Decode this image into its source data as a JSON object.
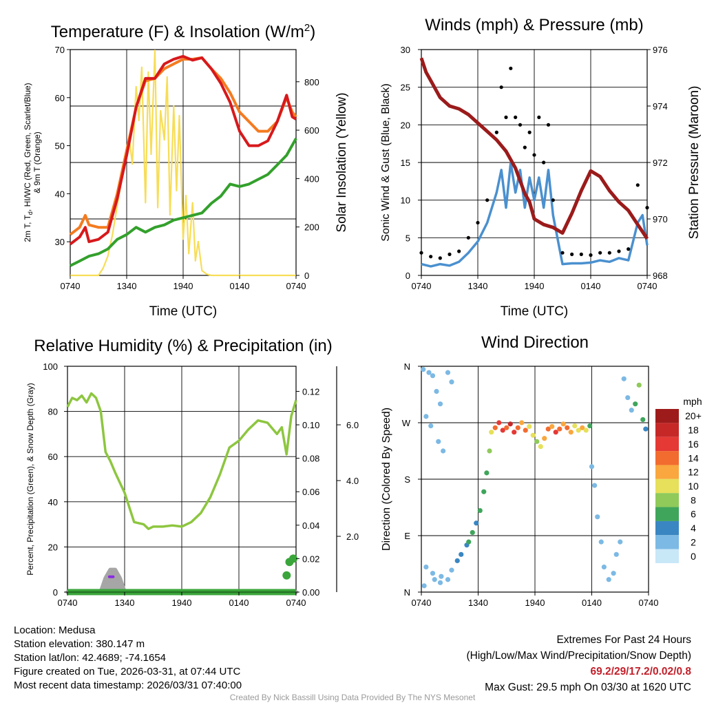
{
  "panels": {
    "temp": {
      "title": "Temperature (F) & Insolation (W/m",
      "title_sup": "2",
      "title_close": ")",
      "ylabel_line1": "2m T, T",
      "ylabel_sub": "d",
      "ylabel_rest": ", HI/WC (Red, Green, Scarlet/Blue)",
      "ylabel_line2": "& 9m T (Orange)",
      "y2label": "Solar Insolation (Yellow)",
      "xlabel": "Time (UTC)"
    },
    "wind": {
      "title": "Winds (mph) & Pressure (mb)",
      "ylabel": "Sonic Wind & Gust (Blue, Black)",
      "y2label": "Station Pressure (Maroon)",
      "xlabel": "Time (UTC)"
    },
    "rh": {
      "title": "Relative Humidity (%) & Precipitation (in)",
      "ylabel": "Percent, Precipitation (Green), & Snow Depth (Gray)"
    },
    "dir": {
      "title": "Wind Direction",
      "ylabel": "Direction (Colored By Speed)",
      "legend_title": "mph"
    }
  },
  "info": {
    "location": "Location: Medusa",
    "elevation": "Station elevation: 380.147 m",
    "latlon": "Station lat/lon: 42.4689; -74.1654",
    "created": "Figure created on Tue, 2026-03-31, at 07:44 UTC",
    "recent": "Most recent data timestamp: 2026/03/31 07:40:00"
  },
  "extremes": {
    "title": "Extremes For Past 24 Hours",
    "subtitle": "(High/Low/Max Wind/Precipitation/Snow Depth)",
    "values": "69.2/29/17.2/0.02/0.8",
    "max_gust": "Max Gust: 29.5 mph On 03/30 at 1620 UTC"
  },
  "credit": "Created By Nick Bassill Using Data Provided By The NYS Mesonet",
  "colors": {
    "temp": "#d7191c",
    "dewpoint": "#33a02c",
    "nine_m": "#f47b20",
    "insolation": "#f7dd57",
    "wind": "#4a90cf",
    "gust": "#000000",
    "pressure": "#9b1b1b",
    "rh": "#8dc63f",
    "precip": "#3aa53a",
    "snow": "#a6a6a6",
    "snow_marker": "#8a2be2"
  },
  "chart_data": [
    {
      "id": "temp",
      "type": "line",
      "title": "Temperature (F) & Insolation (W/m2)",
      "xlabel": "Time (UTC)",
      "x_ticks": [
        "0740",
        "1340",
        "1940",
        "0140",
        "0740"
      ],
      "x_range_hours": [
        0,
        24
      ],
      "ylim": [
        23,
        70
      ],
      "yticks": [
        30,
        40,
        50,
        60,
        70
      ],
      "y2lim": [
        0,
        933
      ],
      "y2ticks": [
        0,
        200,
        400,
        600,
        800
      ],
      "series": [
        {
          "name": "9m T (Orange)",
          "axis": "left",
          "color_key": "nine_m",
          "x": [
            0,
            1,
            1.6,
            2,
            3,
            4,
            5,
            6,
            7,
            8,
            9,
            10,
            11,
            12,
            13,
            14,
            15,
            16,
            17,
            18,
            19,
            20,
            21,
            22,
            23,
            23.6,
            24
          ],
          "y": [
            31.5,
            33,
            35.5,
            33.5,
            33,
            33,
            40,
            49,
            58,
            63.5,
            64,
            66,
            67,
            68,
            68,
            68.3,
            66,
            64,
            61,
            57,
            55,
            53,
            53,
            55,
            60,
            57,
            56
          ]
        },
        {
          "name": "2m T (Red)",
          "axis": "left",
          "color_key": "temp",
          "x": [
            0,
            1,
            1.6,
            2,
            3,
            4,
            5,
            6,
            7,
            8,
            9,
            10,
            11,
            12,
            13,
            14,
            15,
            16,
            17,
            18,
            19,
            20,
            21,
            22,
            23,
            23.6,
            24
          ],
          "y": [
            29.5,
            31,
            33,
            30,
            30.5,
            32,
            39,
            48,
            58,
            64,
            64,
            67,
            68,
            68.6,
            67.8,
            68.3,
            66,
            63,
            59,
            53,
            50,
            50,
            51,
            55,
            60.5,
            56,
            55.5
          ]
        },
        {
          "name": "Dewpoint (Green)",
          "axis": "left",
          "color_key": "dewpoint",
          "x": [
            0,
            1,
            2,
            3,
            4,
            5,
            6,
            7,
            8,
            9,
            10,
            11,
            12,
            13,
            14,
            15,
            16,
            17,
            18,
            19,
            20,
            21,
            22,
            23,
            24
          ],
          "y": [
            25,
            26,
            27,
            27.5,
            28.5,
            30.5,
            31.5,
            33,
            32,
            33,
            33.5,
            34.5,
            35,
            35.5,
            36,
            38,
            39.5,
            42,
            41.5,
            42,
            43,
            44,
            46,
            48,
            51.5
          ]
        },
        {
          "name": "Solar Insolation (Yellow)",
          "axis": "right",
          "color_key": "insolation",
          "x": [
            0,
            3,
            3.5,
            4,
            4.5,
            5,
            5.5,
            6,
            6.3,
            6.6,
            7,
            7.3,
            7.6,
            8,
            8.3,
            8.6,
            9,
            9.3,
            9.6,
            10,
            10.3,
            10.6,
            11,
            11.3,
            11.6,
            12,
            12.3,
            12.6,
            13,
            13.3,
            13.6,
            14,
            14.5,
            15,
            24
          ],
          "y": [
            0,
            0,
            30,
            80,
            170,
            290,
            400,
            520,
            560,
            460,
            780,
            640,
            860,
            300,
            840,
            500,
            930,
            280,
            680,
            560,
            820,
            250,
            700,
            350,
            660,
            150,
            330,
            90,
            300,
            60,
            140,
            20,
            5,
            0,
            0
          ]
        }
      ]
    },
    {
      "id": "wind",
      "type": "line",
      "title": "Winds (mph) & Pressure (mb)",
      "xlabel": "Time (UTC)",
      "x_ticks": [
        "0740",
        "1340",
        "1940",
        "0140",
        "0740"
      ],
      "x_range_hours": [
        0,
        24
      ],
      "ylim": [
        0,
        30
      ],
      "yticks": [
        0,
        5,
        10,
        15,
        20,
        25,
        30
      ],
      "y2lim": [
        968,
        976
      ],
      "y2ticks": [
        968,
        970,
        972,
        974,
        976
      ],
      "series": [
        {
          "name": "Sonic Wind (Blue)",
          "axis": "left",
          "color_key": "wind",
          "x": [
            0,
            1,
            2,
            3,
            4,
            5,
            6,
            7,
            8,
            8.5,
            9,
            9.5,
            10,
            10.5,
            11,
            11.5,
            12,
            12.5,
            13,
            13.5,
            14,
            15,
            16,
            17,
            18,
            19,
            20,
            21,
            22,
            23,
            23.5,
            24
          ],
          "y": [
            1.5,
            1.2,
            1.5,
            1.3,
            1.8,
            3,
            4.5,
            7,
            11,
            14,
            9,
            15,
            11,
            14,
            9,
            13,
            10,
            13,
            9,
            14,
            8,
            1.5,
            1.6,
            1.6,
            1.7,
            2,
            1.8,
            2.3,
            2,
            7,
            8,
            4
          ]
        },
        {
          "name": "Gust (Black)",
          "axis": "left",
          "color_key": "gust",
          "render": "points",
          "x": [
            0,
            1,
            2,
            3,
            4,
            5,
            6,
            7,
            8,
            8.5,
            9,
            9.5,
            10,
            10.5,
            11,
            11.5,
            12,
            12.5,
            13,
            13.5,
            14,
            15,
            16,
            17,
            18,
            19,
            20,
            21,
            22,
            23,
            24
          ],
          "y": [
            3,
            2.5,
            2.3,
            2.8,
            3.2,
            5,
            7,
            10,
            19,
            25,
            21,
            27.5,
            21,
            20,
            17,
            19,
            16,
            21,
            15,
            20,
            10,
            3,
            2.8,
            2.8,
            2.7,
            3,
            3,
            3.2,
            3.5,
            12,
            9
          ]
        },
        {
          "name": "Station Pressure (Maroon)",
          "axis": "right",
          "color_key": "pressure",
          "x": [
            0,
            0.5,
            1,
            2,
            3,
            4,
            5,
            6,
            7,
            8,
            9,
            10,
            11,
            11.5,
            12,
            13,
            14,
            15,
            16,
            17,
            18,
            19,
            20,
            21,
            22,
            23,
            24
          ],
          "y": [
            975.7,
            975.2,
            974.9,
            974.3,
            974.0,
            973.9,
            973.7,
            973.4,
            973.1,
            972.8,
            972.4,
            971.8,
            970.9,
            970.6,
            970.0,
            969.8,
            969.7,
            969.5,
            970.2,
            971.0,
            971.7,
            971.5,
            971.0,
            970.6,
            970.3,
            969.8,
            969.3
          ]
        }
      ]
    },
    {
      "id": "rh",
      "type": "line",
      "title": "Relative Humidity (%) & Precipitation (in)",
      "x_ticks": [
        "0740",
        "1340",
        "1940",
        "0140",
        "0740"
      ],
      "x_range_hours": [
        0,
        24
      ],
      "ylim": [
        0,
        100
      ],
      "yticks": [
        0,
        20,
        40,
        60,
        80,
        100
      ],
      "y2lim": [
        0,
        0.135
      ],
      "y2ticks": [
        0.0,
        0.02,
        0.04,
        0.06,
        0.08,
        0.1,
        0.12
      ],
      "y2tick_labels": [
        "0.00",
        "0.02",
        "0.04",
        "0.06",
        "0.08",
        "0.10",
        "0.12"
      ],
      "y3lim": [
        0,
        8.1
      ],
      "y3ticks": [
        2.0,
        4.0,
        6.0
      ],
      "y3tick_labels": [
        "2.0",
        "4.0",
        "6.0"
      ],
      "series": [
        {
          "name": "Relative Humidity (Green)",
          "axis": "left",
          "color_key": "rh",
          "x": [
            0,
            0.5,
            1,
            1.5,
            2,
            2.5,
            3,
            3.5,
            4,
            4.5,
            5,
            6,
            7,
            8,
            8.5,
            9,
            10,
            11,
            12,
            13,
            14,
            15,
            16,
            17,
            18,
            19,
            20,
            21,
            22,
            22.5,
            23,
            23.5,
            24
          ],
          "y": [
            82,
            86,
            85,
            87,
            84,
            88,
            86,
            80,
            62,
            58,
            53,
            44,
            31,
            30,
            28,
            29,
            29,
            29.5,
            29,
            31,
            35,
            42,
            52,
            64,
            67,
            72,
            76,
            75,
            70,
            73,
            61,
            78,
            85
          ]
        },
        {
          "name": "Precipitation (Green)",
          "axis": "right",
          "color_key": "precip",
          "x": [
            0,
            23,
            23.3,
            23.6,
            24
          ],
          "y": [
            0.0,
            0.0,
            0.01,
            0.018,
            0.02
          ]
        },
        {
          "name": "Snow Depth (Gray)",
          "axis": "right3",
          "color_key": "snow",
          "x": [
            0,
            3.5,
            4,
            4.5,
            5,
            5.5,
            6,
            24
          ],
          "y": [
            0,
            0,
            0.5,
            0.8,
            0.8,
            0.5,
            0,
            0
          ]
        }
      ]
    },
    {
      "id": "dir",
      "type": "scatter",
      "title": "Wind Direction",
      "ylabel": "Direction (Colored By Speed)",
      "x_ticks": [
        "0740",
        "1340",
        "1940",
        "0140",
        "0740"
      ],
      "x_range_hours": [
        0,
        24
      ],
      "ylim": [
        0,
        360
      ],
      "yticks": [
        0,
        90,
        180,
        270,
        360
      ],
      "ytick_labels": [
        "N",
        "E",
        "S",
        "W",
        "N"
      ],
      "colorbar": {
        "title": "mph",
        "labels": [
          "20+",
          "18",
          "16",
          "14",
          "12",
          "10",
          "8",
          "6",
          "4",
          "2",
          "0"
        ],
        "colors": [
          "#9e1b1b",
          "#c62828",
          "#e53935",
          "#f26b2f",
          "#f9a73e",
          "#e6e05a",
          "#8fca5a",
          "#3fa55b",
          "#3a86c2",
          "#7cb9e4",
          "#c8e7f7"
        ]
      },
      "clusters": [
        {
          "x": [
            0.2,
            0.8,
            1.2,
            1.6,
            2.0,
            0.5,
            1.0,
            1.8,
            2.3,
            2.8,
            3.2,
            0.3,
            1.4,
            2.1
          ],
          "y": [
            355,
            350,
            345,
            320,
            300,
            280,
            265,
            240,
            225,
            350,
            335,
            10,
            20,
            25
          ],
          "speed": [
            1,
            1,
            2,
            1,
            1,
            2,
            1,
            1,
            2,
            1,
            1,
            1,
            2,
            1
          ]
        },
        {
          "x": [
            0.5,
            1.2,
            2.0,
            2.8,
            3.2,
            3.8,
            4.2,
            4.8,
            5.0,
            5.4,
            5.8,
            6.2,
            6.6,
            6.9,
            7.2
          ],
          "y": [
            40,
            30,
            15,
            20,
            35,
            50,
            60,
            75,
            80,
            95,
            110,
            130,
            160,
            190,
            225
          ],
          "speed": [
            2,
            1,
            1,
            2,
            2,
            3,
            4,
            4,
            5,
            5,
            4,
            5,
            5,
            6,
            7
          ]
        },
        {
          "x": [
            7.4,
            7.8,
            8.2,
            8.6,
            9.0,
            9.4,
            9.8,
            10.2,
            10.6,
            11.0,
            11.4,
            11.8,
            12.2,
            12.6,
            13.0,
            13.4,
            13.8,
            14.2,
            14.6,
            15.0,
            15.4,
            15.8,
            16.2,
            16.6,
            17.0,
            17.4,
            17.8
          ],
          "y": [
            255,
            262,
            270,
            258,
            262,
            268,
            255,
            262,
            270,
            258,
            264,
            250,
            240,
            232,
            245,
            260,
            264,
            255,
            260,
            268,
            262,
            255,
            265,
            258,
            262,
            258,
            265
          ],
          "speed": [
            9,
            13,
            16,
            15,
            13,
            18,
            16,
            14,
            12,
            13,
            10,
            9,
            8,
            9,
            11,
            13,
            12,
            15,
            13,
            11,
            14,
            12,
            10,
            9,
            11,
            9,
            6
          ]
        },
        {
          "x": [
            18.0,
            18.3,
            18.6,
            19.0,
            19.3,
            19.8,
            20.3,
            20.6,
            21.0,
            21.4,
            21.8,
            22.2,
            22.6,
            23.0,
            23.4,
            23.7
          ],
          "y": [
            200,
            170,
            120,
            80,
            40,
            20,
            30,
            60,
            80,
            340,
            310,
            290,
            300,
            330,
            275,
            260
          ],
          "speed": [
            2,
            2,
            1,
            1,
            1,
            1,
            2,
            1,
            1,
            1,
            1,
            2,
            5,
            8,
            6,
            4
          ]
        }
      ]
    }
  ]
}
